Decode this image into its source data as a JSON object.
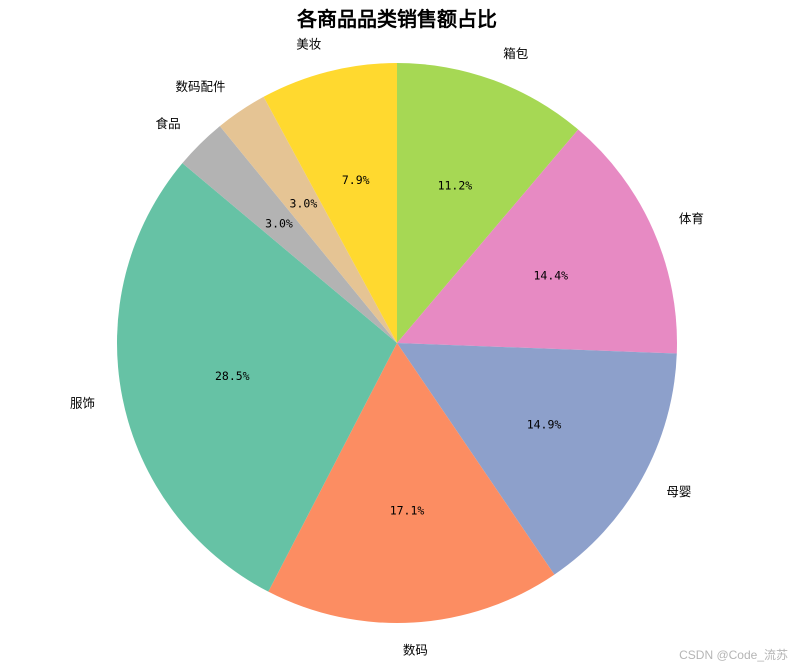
{
  "chart_data": {
    "type": "pie",
    "title": "各商品品类销售额占比",
    "categories": [
      "箱包",
      "体育",
      "母婴",
      "数码",
      "服饰",
      "食品",
      "数码配件",
      "美妆"
    ],
    "values": [
      11.2,
      14.4,
      14.9,
      17.1,
      28.5,
      3.0,
      3.0,
      7.9
    ],
    "value_labels": [
      "11.2%",
      "14.4%",
      "14.9%",
      "17.1%",
      "28.5%",
      "3.0%",
      "3.0%",
      "7.9%"
    ],
    "colors": [
      "#a6d854",
      "#e78ac3",
      "#8da0cb",
      "#fc8d62",
      "#66c2a5",
      "#b3b3b3",
      "#e5c494",
      "#ffd92f"
    ],
    "start_angle_deg": 90,
    "direction": "clockwise",
    "legend": "none"
  },
  "watermark": "CSDN @Code_流苏"
}
